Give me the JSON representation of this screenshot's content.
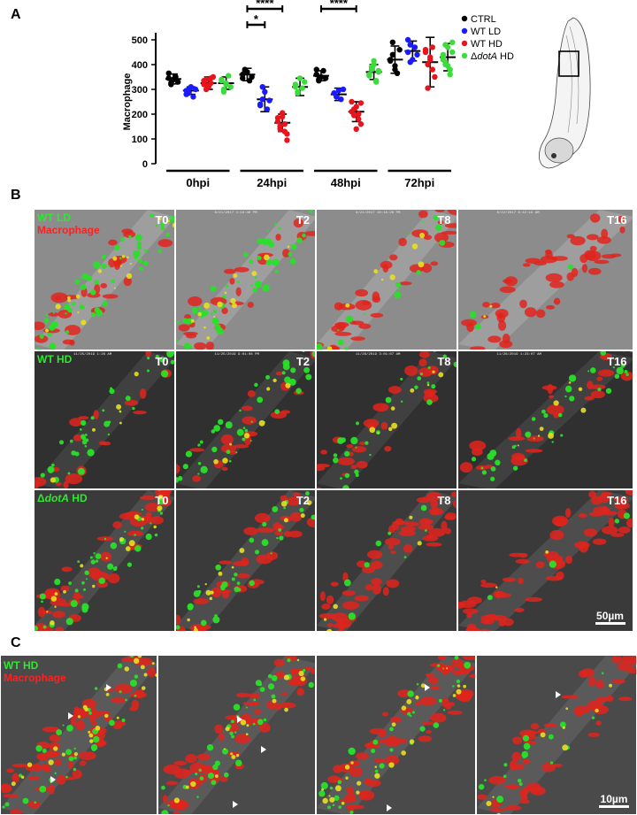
{
  "panel_labels": {
    "a": "A",
    "b": "B",
    "c": "C"
  },
  "chart_data": {
    "type": "scatter",
    "ylabel": "Macrophage",
    "ylim": [
      0,
      500
    ],
    "yticks": [
      0,
      100,
      200,
      300,
      400,
      500
    ],
    "groups": [
      "0hpi",
      "24hpi",
      "48hpi",
      "72hpi"
    ],
    "series": [
      {
        "name": "CTRL",
        "color": "#000000",
        "marker": "circle",
        "values": [
          [
            345,
            320,
            340,
            350,
            330,
            365,
            325
          ],
          [
            360,
            380,
            370,
            335,
            350,
            345,
            375
          ],
          [
            360,
            335,
            350,
            375,
            345,
            380,
            340
          ],
          [
            415,
            440,
            395,
            365,
            460,
            420,
            490,
            380
          ]
        ],
        "mean": [
          342,
          360,
          355,
          420
        ],
        "sd": [
          20,
          25,
          20,
          55
        ]
      },
      {
        "name": "WT LD",
        "color": "#1a1aff",
        "marker": "circle",
        "values": [
          [
            295,
            285,
            310,
            270,
            300,
            280,
            300
          ],
          [
            240,
            260,
            290,
            220,
            255,
            235,
            310
          ],
          [
            285,
            270,
            295,
            260,
            300
          ],
          [
            450,
            480,
            420,
            470,
            440,
            500,
            410
          ]
        ],
        "mean": [
          295,
          260,
          280,
          455
        ],
        "sd": [
          15,
          50,
          25,
          40
        ]
      },
      {
        "name": "WT HD",
        "color": "#e8141c",
        "marker": "circle",
        "values": [
          [
            320,
            340,
            310,
            325,
            350,
            335,
            300,
            315,
            345
          ],
          [
            170,
            140,
            190,
            160,
            120,
            185,
            150,
            205,
            130,
            95
          ],
          [
            210,
            195,
            230,
            180,
            160,
            250,
            220,
            140,
            200,
            245
          ],
          [
            450,
            400,
            420,
            380,
            350,
            460,
            305,
            430,
            470
          ]
        ],
        "mean": [
          325,
          165,
          210,
          410
        ],
        "sd": [
          25,
          35,
          40,
          100
        ]
      },
      {
        "name": "ΔdotA HD",
        "color": "#3ddc3d",
        "marker": "circle",
        "values": [
          [
            340,
            300,
            325,
            355,
            310,
            335,
            290,
            320
          ],
          [
            320,
            290,
            345,
            305,
            330,
            310,
            285
          ],
          [
            360,
            380,
            400,
            335,
            370,
            355,
            390,
            415,
            330,
            375
          ],
          [
            440,
            400,
            470,
            380,
            450,
            420,
            480,
            395,
            360,
            490,
            430,
            410
          ]
        ],
        "mean": [
          325,
          310,
          370,
          430
        ],
        "sd": [
          25,
          35,
          30,
          55
        ]
      }
    ],
    "significance": [
      {
        "label": "****",
        "group": "24hpi",
        "from_series": 0,
        "to_series": 2
      },
      {
        "label": "*",
        "group": "24hpi",
        "from_series": 0,
        "to_series": 1
      },
      {
        "label": "****",
        "group": "48hpi",
        "from_series": 0,
        "to_series": 2
      }
    ],
    "legend_position": "top-right"
  },
  "panelB": {
    "rows": [
      {
        "label": "WT LD",
        "label_color": "#2ee82e",
        "second_label": "Macrophage",
        "second_color": "#ff2020",
        "timepoints": [
          "T0",
          "T2",
          "T8",
          "T16"
        ],
        "timestamps": [
          "",
          "8/21/2017 4:16:46 PM",
          "8/21/2017 10:16:26 PM",
          "8/22/2017 6:42:19 AM"
        ]
      },
      {
        "label": "WT HD",
        "label_color": "#2ee82e",
        "timepoints": [
          "T0",
          "T2",
          "T8",
          "T16"
        ],
        "timestamps": [
          "11/25/2019 1:26 AM",
          "11/25/2019 9:01:08 PM",
          "11/26/2019 3:01:07 AM",
          "11/26/2019 1:23:07 AM"
        ]
      },
      {
        "label": "ΔdotA HD",
        "label_color": "#2ee82e",
        "timepoints": [
          "T0",
          "T2",
          "T8",
          "T16"
        ],
        "timestamps": [
          "",
          "",
          "",
          ""
        ]
      }
    ],
    "scalebar": "50µm"
  },
  "panelC": {
    "label_1": "WT HD",
    "label_1_color": "#2ee82e",
    "label_2": "Macrophage",
    "label_2_color": "#ff2020",
    "scalebar": "10µm"
  }
}
